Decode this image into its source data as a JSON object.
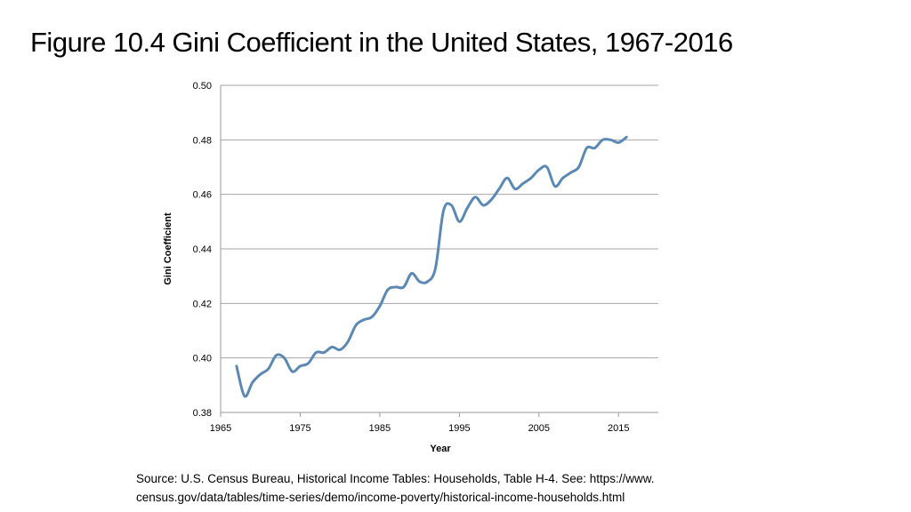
{
  "slide": {
    "title": "Figure 10.4 Gini Coefficient in the United States, 1967-2016"
  },
  "source": {
    "line1": "Source: U.S. Census Bureau, Historical Income Tables: Households, Table H-4. See: https://www.",
    "line2": "census.gov/data/tables/time-series/demo/income-poverty/historical-income-households.html"
  },
  "chart_data": {
    "type": "line",
    "title": "",
    "xlabel": "Year",
    "ylabel": "Gini Coefficient",
    "xlim": [
      1965,
      2020
    ],
    "ylim": [
      0.38,
      0.5
    ],
    "xticks": [
      "1965",
      "1975",
      "1985",
      "1995",
      "2005",
      "2015"
    ],
    "yticks": [
      "0.38",
      "0.40",
      "0.42",
      "0.44",
      "0.46",
      "0.48",
      "0.50"
    ],
    "grid": "horizontal",
    "line_color": "#5b89b4",
    "series": [
      {
        "x": [
          1967,
          1968,
          1969,
          1970,
          1971,
          1972,
          1973,
          1974,
          1975,
          1976,
          1977,
          1978,
          1979,
          1980,
          1981,
          1982,
          1983,
          1984,
          1985,
          1986,
          1987,
          1988,
          1989,
          1990,
          1991,
          1992,
          1993,
          1994,
          1995,
          1996,
          1997,
          1998,
          1999,
          2000,
          2001,
          2002,
          2003,
          2004,
          2005,
          2006,
          2007,
          2008,
          2009,
          2010,
          2011,
          2012,
          2013,
          2014,
          2015,
          2016
        ],
        "values": [
          0.397,
          0.386,
          0.391,
          0.394,
          0.396,
          0.401,
          0.4,
          0.395,
          0.397,
          0.398,
          0.402,
          0.402,
          0.404,
          0.403,
          0.406,
          0.412,
          0.414,
          0.415,
          0.419,
          0.425,
          0.426,
          0.426,
          0.431,
          0.428,
          0.428,
          0.433,
          0.454,
          0.456,
          0.45,
          0.455,
          0.459,
          0.456,
          0.458,
          0.462,
          0.466,
          0.462,
          0.464,
          0.466,
          0.469,
          0.47,
          0.463,
          0.466,
          0.468,
          0.47,
          0.477,
          0.477,
          0.48,
          0.48,
          0.479,
          0.481
        ]
      }
    ]
  }
}
